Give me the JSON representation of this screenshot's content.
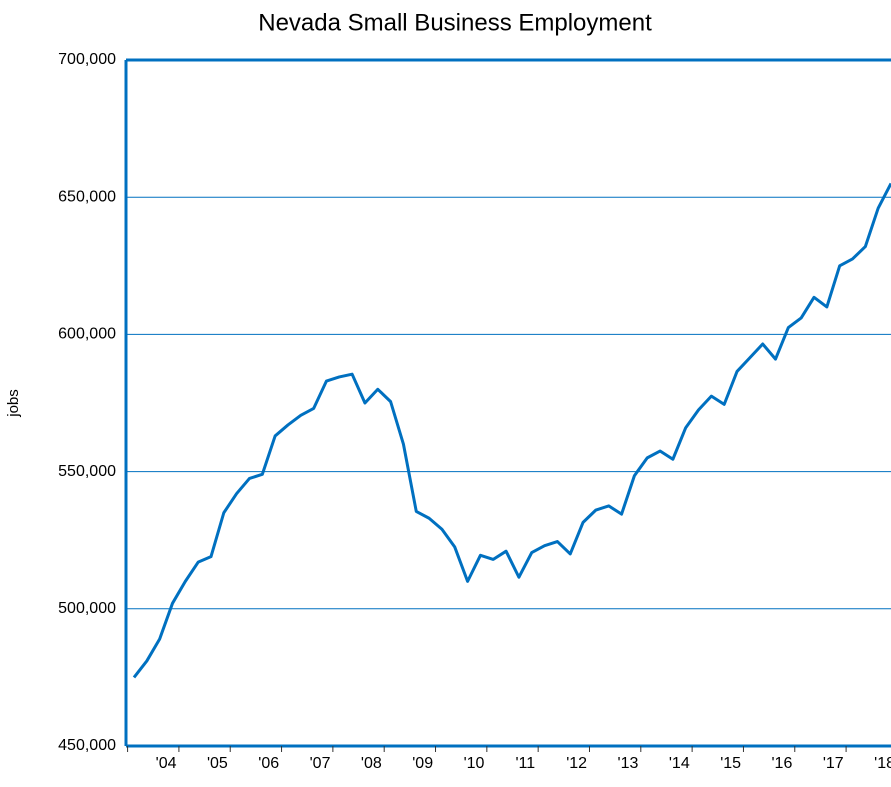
{
  "chart_data": {
    "type": "line",
    "title": "Nevada Small Business Employment",
    "y_label": "jobs",
    "categories": [
      null,
      null,
      "'04",
      null,
      null,
      null,
      "'05",
      null,
      null,
      null,
      "'06",
      null,
      null,
      null,
      "'07",
      null,
      null,
      null,
      "'08",
      null,
      null,
      null,
      "'09",
      null,
      null,
      null,
      "'10",
      null,
      null,
      null,
      "'11",
      null,
      null,
      null,
      "'12",
      null,
      null,
      null,
      "'13",
      null,
      null,
      null,
      "'14",
      null,
      null,
      null,
      "'15",
      null,
      null,
      null,
      "'16",
      null,
      null,
      null,
      "'17",
      null,
      null,
      null,
      "'18",
      null
    ],
    "series": [
      {
        "name": "jobs",
        "color": "#0070c0",
        "values": [
          475000,
          481000,
          489000,
          502000,
          510000,
          517000,
          519000,
          535000,
          542000,
          547500,
          549000,
          563000,
          567000,
          570500,
          573000,
          583000,
          584500,
          585500,
          575000,
          580000,
          575500,
          560000,
          535500,
          533000,
          529000,
          522500,
          510000,
          519500,
          518000,
          521000,
          511500,
          520500,
          523000,
          524500,
          520000,
          531500,
          536000,
          537500,
          534500,
          548500,
          555000,
          557500,
          554500,
          566000,
          572500,
          577500,
          574500,
          586500,
          591500,
          596500,
          591000,
          602500,
          606000,
          613500,
          610000,
          625000,
          627500,
          632000,
          646000,
          655000
        ]
      }
    ],
    "ylim": [
      450000,
      700000
    ],
    "yticks": [
      {
        "value": 450000,
        "label": "450,000"
      },
      {
        "value": 500000,
        "label": "500,000"
      },
      {
        "value": 550000,
        "label": "550,000"
      },
      {
        "value": 600000,
        "label": "600,000"
      },
      {
        "value": 650000,
        "label": "650,000"
      },
      {
        "value": 700000,
        "label": "700,000"
      }
    ],
    "grid": true
  }
}
